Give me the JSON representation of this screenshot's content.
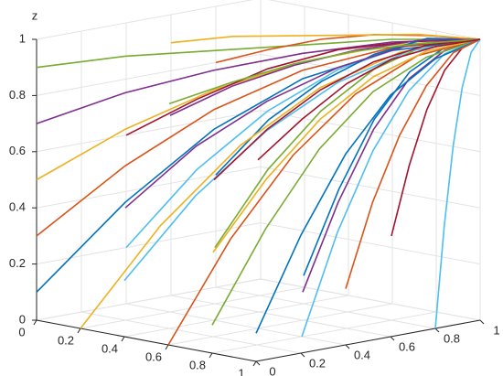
{
  "chart_data": {
    "type": "line3d",
    "zlabel": "z",
    "xlim": [
      0,
      1
    ],
    "ylim": [
      0,
      1
    ],
    "zlim": [
      0,
      1
    ],
    "xticks": [
      0,
      0.2,
      0.4,
      0.6,
      0.8,
      1
    ],
    "yticks": [
      0,
      0.2,
      0.4,
      0.6,
      0.8,
      1
    ],
    "zticks": [
      0,
      0.2,
      0.4,
      0.6,
      0.8,
      1
    ],
    "grid": true,
    "series": [
      {
        "color": "#0072bd",
        "x": [
          0,
          0.2,
          0.4,
          0.6,
          0.8,
          1
        ],
        "y": [
          0,
          0.2,
          0.4,
          0.6,
          0.8,
          1
        ],
        "z": [
          0.1,
          0.42,
          0.68,
          0.86,
          0.96,
          1
        ]
      },
      {
        "color": "#d95319",
        "x": [
          0,
          0.2,
          0.4,
          0.6,
          0.8,
          1
        ],
        "y": [
          0,
          0.2,
          0.4,
          0.6,
          0.8,
          1
        ],
        "z": [
          0.3,
          0.55,
          0.75,
          0.89,
          0.97,
          1
        ]
      },
      {
        "color": "#edb120",
        "x": [
          0,
          0.2,
          0.4,
          0.6,
          0.8,
          1
        ],
        "y": [
          0,
          0.2,
          0.4,
          0.6,
          0.8,
          1
        ],
        "z": [
          0.5,
          0.68,
          0.82,
          0.92,
          0.98,
          1
        ]
      },
      {
        "color": "#7e2f8e",
        "x": [
          0,
          0.2,
          0.4,
          0.6,
          0.8,
          1
        ],
        "y": [
          0,
          0.2,
          0.4,
          0.6,
          0.8,
          1
        ],
        "z": [
          0.7,
          0.81,
          0.89,
          0.95,
          0.99,
          1
        ]
      },
      {
        "color": "#77ac30",
        "x": [
          0,
          0.2,
          0.4,
          0.6,
          0.8,
          1
        ],
        "y": [
          0,
          0.2,
          0.4,
          0.6,
          0.8,
          1
        ],
        "z": [
          0.9,
          0.94,
          0.96,
          0.98,
          1,
          1
        ]
      },
      {
        "color": "#4dbeee",
        "x": [
          0,
          0.2,
          0.4,
          0.6,
          0.8,
          1
        ],
        "y": [
          0.4,
          0.52,
          0.64,
          0.76,
          0.88,
          1
        ],
        "z": [
          0.2,
          0.49,
          0.71,
          0.87,
          0.97,
          1
        ]
      },
      {
        "color": "#a2142f",
        "x": [
          0,
          0.2,
          0.4,
          0.6,
          0.8,
          1
        ],
        "y": [
          0.4,
          0.52,
          0.64,
          0.76,
          0.88,
          1
        ],
        "z": [
          0.6,
          0.74,
          0.86,
          0.94,
          0.98,
          1
        ]
      },
      {
        "color": "#0072bd",
        "x": [
          0,
          0.2,
          0.4,
          0.6,
          0.8,
          1
        ],
        "y": [
          0.8,
          0.84,
          0.88,
          0.92,
          0.96,
          1
        ],
        "z": [
          0.4,
          0.62,
          0.78,
          0.9,
          0.98,
          1
        ]
      },
      {
        "color": "#d95319",
        "x": [
          0,
          0.2,
          0.4,
          0.6,
          0.8,
          1
        ],
        "y": [
          0.8,
          0.84,
          0.88,
          0.92,
          0.96,
          1
        ],
        "z": [
          0.8,
          0.87,
          0.93,
          0.97,
          0.99,
          1
        ]
      },
      {
        "color": "#edb120",
        "x": [
          0.2,
          0.36,
          0.52,
          0.68,
          0.84,
          1
        ],
        "y": [
          0,
          0.2,
          0.4,
          0.6,
          0.8,
          1
        ],
        "z": [
          0,
          0.36,
          0.64,
          0.84,
          0.96,
          1
        ]
      },
      {
        "color": "#7e2f8e",
        "x": [
          0.2,
          0.36,
          0.52,
          0.68,
          0.84,
          1
        ],
        "y": [
          0.2,
          0.36,
          0.52,
          0.68,
          0.84,
          1
        ],
        "z": [
          0.4,
          0.62,
          0.78,
          0.9,
          0.98,
          1
        ]
      },
      {
        "color": "#77ac30",
        "x": [
          0.2,
          0.36,
          0.52,
          0.68,
          0.84,
          1
        ],
        "y": [
          0.6,
          0.68,
          0.76,
          0.84,
          0.92,
          1
        ],
        "z": [
          0.2,
          0.49,
          0.71,
          0.87,
          0.97,
          1
        ]
      },
      {
        "color": "#4dbeee",
        "x": [
          0.4,
          0.52,
          0.64,
          0.76,
          0.88,
          1
        ],
        "y": [
          0,
          0.2,
          0.4,
          0.6,
          0.8,
          1
        ],
        "z": [
          0.2,
          0.49,
          0.71,
          0.87,
          0.97,
          1
        ]
      },
      {
        "color": "#a2142f",
        "x": [
          0.4,
          0.52,
          0.64,
          0.76,
          0.88,
          1
        ],
        "y": [
          0.4,
          0.52,
          0.64,
          0.76,
          0.88,
          1
        ],
        "z": [
          0.5,
          0.68,
          0.82,
          0.92,
          0.98,
          1
        ]
      },
      {
        "color": "#0072bd",
        "x": [
          0.4,
          0.52,
          0.64,
          0.76,
          0.88,
          1
        ],
        "y": [
          0.8,
          0.84,
          0.88,
          0.92,
          0.96,
          1
        ],
        "z": [
          0.1,
          0.42,
          0.68,
          0.86,
          0.96,
          1
        ]
      },
      {
        "color": "#d95319",
        "x": [
          0.6,
          0.68,
          0.76,
          0.84,
          0.92,
          1
        ],
        "y": [
          0,
          0.2,
          0.4,
          0.6,
          0.8,
          1
        ],
        "z": [
          0,
          0.36,
          0.64,
          0.84,
          0.96,
          1
        ]
      },
      {
        "color": "#edb120",
        "x": [
          0.6,
          0.68,
          0.76,
          0.84,
          0.92,
          1
        ],
        "y": [
          0.2,
          0.36,
          0.52,
          0.68,
          0.84,
          1
        ],
        "z": [
          0.3,
          0.55,
          0.75,
          0.89,
          0.97,
          1
        ]
      },
      {
        "color": "#7e2f8e",
        "x": [
          0.6,
          0.68,
          0.76,
          0.84,
          0.92,
          1
        ],
        "y": [
          0.6,
          0.68,
          0.76,
          0.84,
          0.92,
          1
        ],
        "z": [
          0.1,
          0.42,
          0.68,
          0.86,
          0.96,
          1
        ]
      },
      {
        "color": "#77ac30",
        "x": [
          0.8,
          0.84,
          0.88,
          0.92,
          0.96,
          1
        ],
        "y": [
          0,
          0.2,
          0.4,
          0.6,
          0.8,
          1
        ],
        "z": [
          0.1,
          0.42,
          0.68,
          0.86,
          0.96,
          1
        ]
      },
      {
        "color": "#4dbeee",
        "x": [
          0.8,
          0.84,
          0.88,
          0.92,
          0.96,
          1
        ],
        "y": [
          0.4,
          0.52,
          0.64,
          0.76,
          0.88,
          1
        ],
        "z": [
          0,
          0.36,
          0.64,
          0.84,
          0.96,
          1
        ]
      },
      {
        "color": "#a2142f",
        "x": [
          0.8,
          0.84,
          0.88,
          0.92,
          0.96,
          1
        ],
        "y": [
          0.8,
          0.84,
          0.88,
          0.92,
          0.96,
          1
        ],
        "z": [
          0.3,
          0.55,
          0.75,
          0.89,
          0.97,
          1
        ]
      },
      {
        "color": "#0072bd",
        "x": [
          1,
          1,
          1,
          1,
          1,
          1
        ],
        "y": [
          0,
          0.2,
          0.4,
          0.6,
          0.8,
          1
        ],
        "z": [
          0.1,
          0.42,
          0.68,
          0.86,
          0.96,
          1
        ]
      },
      {
        "color": "#d95319",
        "x": [
          1,
          1,
          1,
          1,
          1,
          1
        ],
        "y": [
          0.4,
          0.52,
          0.64,
          0.76,
          0.88,
          1
        ],
        "z": [
          0.2,
          0.49,
          0.71,
          0.87,
          0.97,
          1
        ]
      },
      {
        "color": "#edb120",
        "x": [
          0,
          0.2,
          0.4,
          0.6,
          0.8,
          1
        ],
        "y": [
          0.6,
          0.68,
          0.76,
          0.84,
          0.92,
          1
        ],
        "z": [
          0.9,
          0.94,
          0.96,
          0.98,
          1,
          1
        ]
      },
      {
        "color": "#7e2f8e",
        "x": [
          0.2,
          0.36,
          0.52,
          0.68,
          0.84,
          1
        ],
        "y": [
          0.4,
          0.52,
          0.64,
          0.76,
          0.88,
          1
        ],
        "z": [
          0.7,
          0.81,
          0.89,
          0.95,
          0.99,
          1
        ]
      },
      {
        "color": "#77ac30",
        "x": [
          0.4,
          0.52,
          0.64,
          0.76,
          0.88,
          1
        ],
        "y": [
          0.2,
          0.36,
          0.52,
          0.68,
          0.84,
          1
        ],
        "z": [
          0.8,
          0.87,
          0.93,
          0.97,
          0.99,
          1
        ]
      },
      {
        "color": "#4dbeee",
        "x": [
          1,
          1,
          1,
          1,
          1,
          1
        ],
        "y": [
          0.8,
          0.84,
          0.88,
          0.92,
          0.96,
          1
        ],
        "z": [
          0,
          0.36,
          0.64,
          0.84,
          0.96,
          1
        ]
      },
      {
        "color": "#a2142f",
        "x": [
          0.6,
          0.68,
          0.76,
          0.84,
          0.92,
          1
        ],
        "y": [
          0.4,
          0.52,
          0.64,
          0.76,
          0.88,
          1
        ],
        "z": [
          0.6,
          0.74,
          0.86,
          0.94,
          0.98,
          1
        ]
      }
    ]
  }
}
